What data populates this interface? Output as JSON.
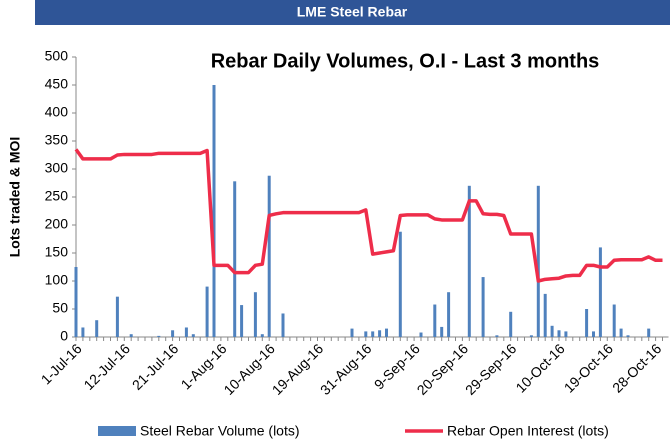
{
  "header": {
    "title": "LME Steel Rebar"
  },
  "chart_data": {
    "type": "combo",
    "title": "Rebar Daily Volumes, O.I - Last 3 months",
    "y_label": "Lots traded & MOI",
    "categories": [
      "1-Jul-16",
      null,
      null,
      null,
      null,
      null,
      null,
      "12-Jul-16",
      null,
      null,
      null,
      null,
      null,
      null,
      "21-Jul-16",
      null,
      null,
      null,
      null,
      null,
      null,
      "1-Aug-16",
      null,
      null,
      null,
      null,
      null,
      null,
      "10-Aug-16",
      null,
      null,
      null,
      null,
      null,
      null,
      "19-Aug-16",
      null,
      null,
      null,
      null,
      null,
      null,
      "31-Aug-16",
      null,
      null,
      null,
      null,
      null,
      null,
      "9-Sep-16",
      null,
      null,
      null,
      null,
      null,
      null,
      "20-Sep-16",
      null,
      null,
      null,
      null,
      null,
      null,
      "29-Sep-16",
      null,
      null,
      null,
      null,
      null,
      null,
      "10-Oct-16",
      null,
      null,
      null,
      null,
      null,
      null,
      "19-Oct-16",
      null,
      null,
      null,
      null,
      null,
      null,
      "28-Oct-16",
      null
    ],
    "series": [
      {
        "name": "Steel Rebar Volume (lots)",
        "type": "bar",
        "color": "#4f81bd",
        "values": [
          125,
          17,
          0,
          30,
          0,
          0,
          72,
          0,
          5,
          0,
          0,
          0,
          2,
          0,
          12,
          0,
          17,
          5,
          0,
          90,
          450,
          0,
          0,
          278,
          57,
          0,
          80,
          5,
          288,
          0,
          42,
          0,
          0,
          0,
          0,
          0,
          0,
          0,
          0,
          0,
          15,
          0,
          10,
          10,
          12,
          15,
          0,
          188,
          0,
          0,
          8,
          0,
          58,
          18,
          80,
          0,
          0,
          270,
          0,
          107,
          0,
          3,
          0,
          45,
          0,
          0,
          3,
          270,
          77,
          20,
          12,
          10,
          0,
          0,
          50,
          10,
          160,
          0,
          58,
          15,
          3,
          0,
          0,
          15,
          0,
          0
        ]
      },
      {
        "name": "Rebar Open Interest (lots)",
        "type": "line",
        "color": "#ee2d4a",
        "values": [
          335,
          318,
          318,
          318,
          318,
          318,
          325,
          326,
          326,
          326,
          326,
          326,
          328,
          328,
          328,
          328,
          328,
          328,
          328,
          333,
          128,
          128,
          128,
          115,
          115,
          115,
          128,
          130,
          217,
          220,
          222,
          222,
          222,
          222,
          222,
          222,
          222,
          222,
          222,
          222,
          222,
          222,
          227,
          148,
          150,
          152,
          154,
          217,
          218,
          218,
          218,
          218,
          211,
          209,
          209,
          209,
          209,
          243,
          243,
          220,
          219,
          219,
          217,
          184,
          184,
          184,
          184,
          100,
          103,
          104,
          105,
          109,
          110,
          110,
          128,
          128,
          125,
          125,
          137,
          138,
          138,
          138,
          138,
          143,
          137,
          137
        ]
      }
    ],
    "ylim": [
      0,
      500
    ],
    "yticks": [
      0,
      50,
      100,
      150,
      200,
      250,
      300,
      350,
      400,
      450,
      500
    ],
    "grid": false
  }
}
